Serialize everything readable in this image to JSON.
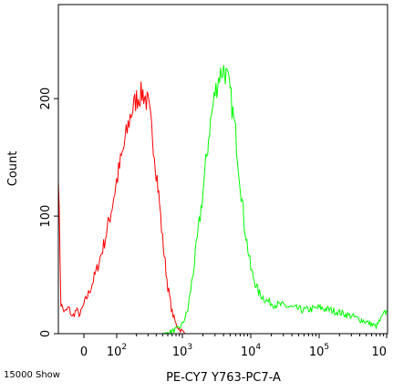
{
  "footer_note": "15000 Show",
  "chart_data": {
    "type": "line",
    "title": "",
    "xlabel": "PE-CY7 Y763-PC7-A",
    "ylabel": "Count",
    "x_scale": "biexponential (log above 10^2)",
    "xlim": [
      -200,
      1000000
    ],
    "ylim": [
      0,
      280
    ],
    "x_ticks": [
      {
        "label": "0",
        "value": 0
      },
      {
        "label": "10",
        "sup": "2",
        "value": 100
      },
      {
        "label": "10",
        "sup": "3",
        "value": 1000
      },
      {
        "label": "10",
        "sup": "4",
        "value": 10000
      },
      {
        "label": "10",
        "sup": "5",
        "value": 100000
      },
      {
        "label": "10",
        "sup": "",
        "value": 1000000
      }
    ],
    "y_ticks": [
      {
        "label": "0",
        "value": 0
      },
      {
        "label": "100",
        "value": 100
      },
      {
        "label": "200",
        "value": 200
      }
    ],
    "grid": false,
    "legend": "none",
    "series": [
      {
        "color": "#ff0000",
        "x": [
          -200,
          -180,
          -150,
          -120,
          -90,
          -60,
          -30,
          0,
          20,
          40,
          60,
          80,
          100,
          130,
          160,
          200,
          250,
          300,
          350,
          400,
          450,
          500,
          600,
          700,
          800,
          900,
          1000,
          1100
        ],
        "values": [
          140,
          25,
          18,
          22,
          14,
          20,
          16,
          25,
          38,
          55,
          75,
          100,
          130,
          160,
          185,
          200,
          205,
          195,
          170,
          140,
          110,
          80,
          40,
          18,
          8,
          4,
          2,
          0
        ]
      },
      {
        "color": "#00ff00",
        "x": [
          500,
          700,
          900,
          1000,
          1200,
          1500,
          2000,
          2500,
          3000,
          3500,
          4000,
          4500,
          5000,
          6000,
          7000,
          8000,
          10000,
          13000,
          17000,
          22000,
          30000,
          40000,
          60000,
          80000,
          100000,
          150000,
          200000,
          300000,
          500000,
          700000,
          1000000
        ],
        "values": [
          0,
          2,
          5,
          8,
          20,
          60,
          120,
          175,
          205,
          220,
          225,
          218,
          205,
          170,
          130,
          95,
          55,
          35,
          28,
          25,
          24,
          22,
          20,
          21,
          22,
          20,
          18,
          15,
          10,
          6,
          20
        ]
      }
    ]
  }
}
